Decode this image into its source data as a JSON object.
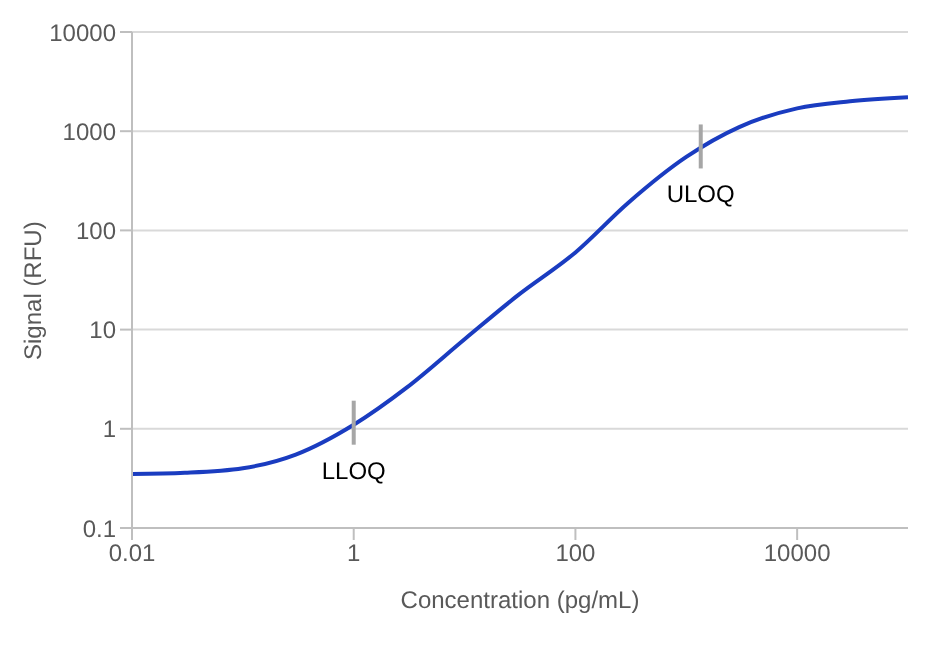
{
  "chart_data": {
    "type": "line",
    "xlabel": "Concentration (pg/mL)",
    "ylabel": "Signal (RFU)",
    "log": "xy",
    "grid": "y",
    "marker": "none",
    "line_style": "solid",
    "x": [
      0.01,
      0.03,
      0.1,
      0.3,
      1,
      3,
      10,
      30,
      100,
      300,
      1000,
      3000,
      10000,
      30000,
      100000
    ],
    "series": [
      {
        "color": "#1a3cc0",
        "values": [
          0.35,
          0.36,
          0.4,
          0.55,
          1.1,
          2.6,
          8,
          22,
          60,
          190,
          550,
          1100,
          1700,
          2000,
          2200
        ]
      }
    ],
    "xlim": [
      0.01,
      100000
    ],
    "xticks": [
      0.01,
      1,
      100,
      10000
    ],
    "ylim": [
      0.1,
      10000
    ],
    "yticks": [
      0.1,
      1,
      10,
      100,
      1000,
      10000
    ],
    "annotations": [
      {
        "text": "LLOQ",
        "x": 1,
        "y": 1.1
      },
      {
        "text": "ULOQ",
        "x": 1350,
        "y": 670
      }
    ]
  }
}
